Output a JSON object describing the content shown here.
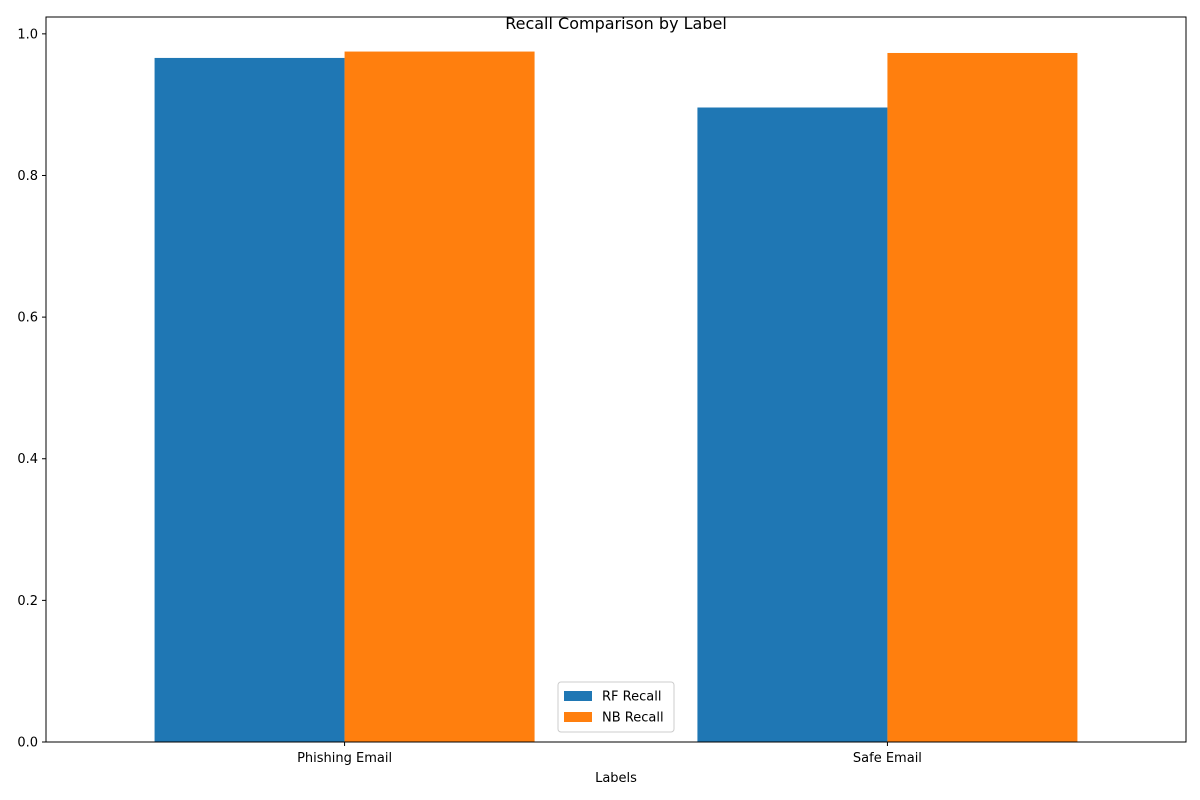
{
  "chart_data": {
    "type": "bar",
    "title": "Recall Comparison by Label",
    "xlabel": "Labels",
    "ylabel": "",
    "categories": [
      "Phishing Email",
      "Safe Email"
    ],
    "series": [
      {
        "name": "RF Recall",
        "color": "#1f77b4",
        "values": [
          0.966,
          0.896
        ]
      },
      {
        "name": "NB Recall",
        "color": "#ff7f0e",
        "values": [
          0.975,
          0.973
        ]
      }
    ],
    "ylim": [
      0,
      1.0238
    ],
    "yticks": [
      0.0,
      0.2,
      0.4,
      0.6,
      0.8,
      1.0
    ],
    "ytick_labels": [
      "0.0",
      "0.2",
      "0.4",
      "0.6",
      "0.8",
      "1.0"
    ],
    "grid": false,
    "legend_position": "lower center"
  }
}
